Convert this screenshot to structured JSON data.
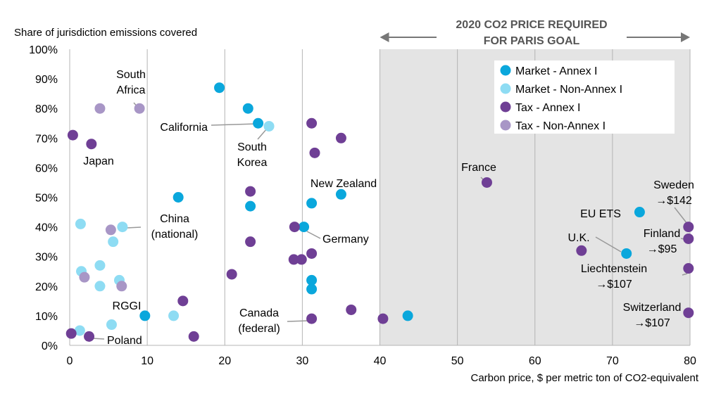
{
  "chart_data": {
    "type": "scatter",
    "ylabel": "Share of jurisdiction emissions covered",
    "xlabel": "Carbon price, $ per metric ton of CO2-equivalent",
    "xlim": [
      0,
      80
    ],
    "ylim": [
      0,
      100
    ],
    "x_ticks": [
      0,
      10,
      20,
      30,
      40,
      50,
      60,
      70,
      80
    ],
    "y_ticks": [
      0,
      10,
      20,
      30,
      40,
      50,
      60,
      70,
      80,
      90,
      100
    ],
    "x_tick_labels": [
      "0",
      "10",
      "20",
      "30",
      "40",
      "50",
      "60",
      "70",
      "80"
    ],
    "y_tick_labels": [
      "0%",
      "10%",
      "20%",
      "30%",
      "40%",
      "50%",
      "60%",
      "70%",
      "80%",
      "90%",
      "100%"
    ],
    "paris_band": {
      "from": 40,
      "to": 80,
      "label_line1": "2020 CO2 PRICE REQUIRED",
      "label_line2": "FOR PARIS GOAL"
    },
    "colors": {
      "Market - Annex I": "#0aa7dc",
      "Market - Non-Annex I": "#8edcf3",
      "Tax - Annex I": "#6f3f95",
      "Tax - Non-Annex I": "#a896c6",
      "band": "#e4e4e4",
      "grid": "#b4b4b4",
      "leader": "#999999"
    },
    "legend_position": "top-right",
    "series": [
      {
        "name": "Market - Annex I",
        "points": [
          {
            "x": 19.3,
            "y": 87
          },
          {
            "x": 23,
            "y": 80
          },
          {
            "x": 24.3,
            "y": 75
          },
          {
            "x": 14,
            "y": 50
          },
          {
            "x": 23.3,
            "y": 47
          },
          {
            "x": 31.2,
            "y": 48
          },
          {
            "x": 35,
            "y": 51
          },
          {
            "x": 30.2,
            "y": 40
          },
          {
            "x": 31.2,
            "y": 22
          },
          {
            "x": 31.2,
            "y": 19
          },
          {
            "x": 9.7,
            "y": 10
          },
          {
            "x": 43.6,
            "y": 10
          },
          {
            "x": 73.5,
            "y": 45
          },
          {
            "x": 71.8,
            "y": 31
          }
        ]
      },
      {
        "name": "Market - Non-Annex I",
        "points": [
          {
            "x": 25.7,
            "y": 74
          },
          {
            "x": 1.4,
            "y": 41
          },
          {
            "x": 6.8,
            "y": 40
          },
          {
            "x": 5.6,
            "y": 35
          },
          {
            "x": 3.9,
            "y": 27
          },
          {
            "x": 1.5,
            "y": 25
          },
          {
            "x": 6.4,
            "y": 22
          },
          {
            "x": 3.9,
            "y": 20
          },
          {
            "x": 13.4,
            "y": 10
          },
          {
            "x": 5.4,
            "y": 7
          },
          {
            "x": 1.3,
            "y": 5
          }
        ]
      },
      {
        "name": "Tax - Annex I",
        "points": [
          {
            "x": 0.4,
            "y": 71
          },
          {
            "x": 2.8,
            "y": 68
          },
          {
            "x": 31.2,
            "y": 75
          },
          {
            "x": 35,
            "y": 70
          },
          {
            "x": 31.6,
            "y": 65
          },
          {
            "x": 23.3,
            "y": 52
          },
          {
            "x": 29,
            "y": 40
          },
          {
            "x": 23.3,
            "y": 35
          },
          {
            "x": 31.2,
            "y": 31
          },
          {
            "x": 28.9,
            "y": 29
          },
          {
            "x": 29.9,
            "y": 29
          },
          {
            "x": 20.9,
            "y": 24
          },
          {
            "x": 14.6,
            "y": 15
          },
          {
            "x": 36.3,
            "y": 12
          },
          {
            "x": 31.2,
            "y": 9
          },
          {
            "x": 40.4,
            "y": 9
          },
          {
            "x": 16,
            "y": 3
          },
          {
            "x": 2.5,
            "y": 3
          },
          {
            "x": 0.2,
            "y": 4
          },
          {
            "x": 53.8,
            "y": 55
          },
          {
            "x": 66,
            "y": 32
          },
          {
            "x": 79.8,
            "y": 40
          },
          {
            "x": 79.8,
            "y": 36
          },
          {
            "x": 79.8,
            "y": 26
          },
          {
            "x": 79.8,
            "y": 11
          }
        ]
      },
      {
        "name": "Tax - Non-Annex I",
        "points": [
          {
            "x": 3.9,
            "y": 80
          },
          {
            "x": 9,
            "y": 80
          },
          {
            "x": 5.3,
            "y": 39
          },
          {
            "x": 1.9,
            "y": 23
          },
          {
            "x": 6.7,
            "y": 20
          }
        ]
      }
    ],
    "annotations": [
      {
        "key": "south_africa",
        "lines": [
          "South",
          "Africa"
        ]
      },
      {
        "key": "california",
        "lines": [
          "California"
        ]
      },
      {
        "key": "south_korea",
        "lines": [
          "South",
          "Korea"
        ]
      },
      {
        "key": "japan",
        "lines": [
          "Japan"
        ]
      },
      {
        "key": "new_zealand",
        "lines": [
          "New Zealand"
        ]
      },
      {
        "key": "china",
        "lines": [
          "China",
          "(national)"
        ]
      },
      {
        "key": "germany",
        "lines": [
          "Germany"
        ]
      },
      {
        "key": "rggi",
        "lines": [
          "RGGI"
        ]
      },
      {
        "key": "poland",
        "lines": [
          "Poland"
        ]
      },
      {
        "key": "canada",
        "lines": [
          "Canada",
          "(federal)"
        ]
      },
      {
        "key": "france",
        "lines": [
          "France"
        ]
      },
      {
        "key": "sweden",
        "lines": [
          "Sweden",
          "→$142"
        ]
      },
      {
        "key": "eu_ets",
        "lines": [
          "EU ETS"
        ]
      },
      {
        "key": "finland",
        "lines": [
          "Finland",
          "→$95"
        ]
      },
      {
        "key": "uk",
        "lines": [
          "U.K."
        ]
      },
      {
        "key": "liechtenstein",
        "lines": [
          "Liechtenstein",
          "→$107"
        ]
      },
      {
        "key": "switzerland",
        "lines": [
          "Switzerland",
          "→$107"
        ]
      }
    ]
  }
}
